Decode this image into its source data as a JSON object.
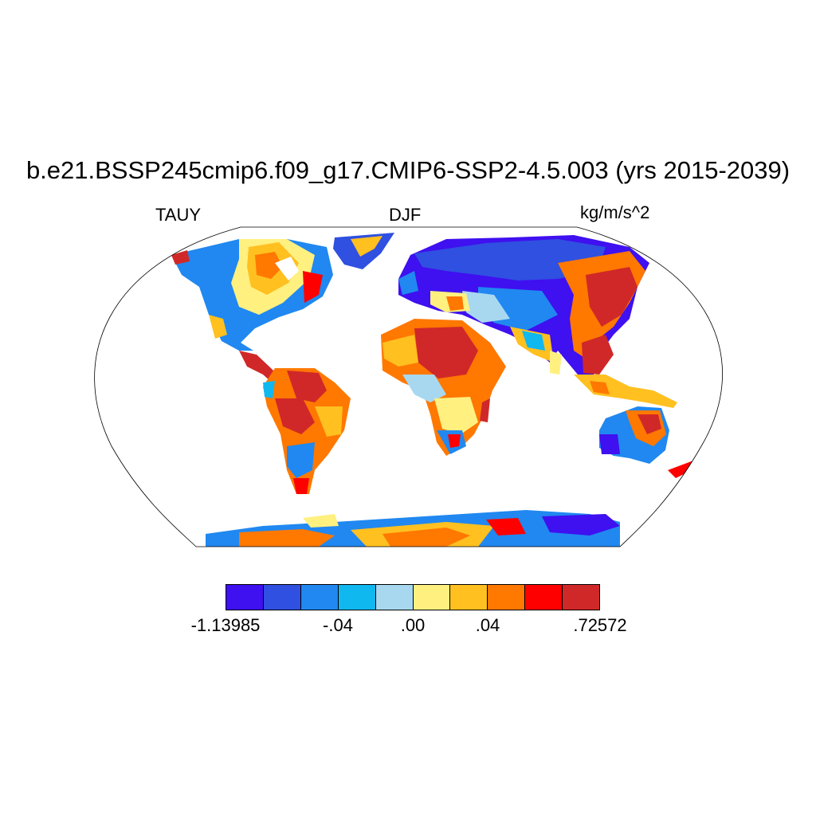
{
  "title": "b.e21.BSSP245cmip6.f09_g17.CMIP6-SSP2-4.5.003 (yrs 2015-2039)",
  "left_label": "TAUY",
  "center_label": "DJF",
  "right_label": "kg/m/s^2",
  "colorbar": {
    "colors": [
      "#3f10f0",
      "#2f50e0",
      "#2088f0",
      "#10b8f0",
      "#a8d8f0",
      "#fff080",
      "#ffc020",
      "#ff7800",
      "#ff0000",
      "#d02828"
    ],
    "tick_labels": [
      "-1.13985",
      "-.04",
      ".00",
      ".04",
      ".72572"
    ]
  },
  "map_legend_colors": {
    "land_outline": "#000000",
    "ocean": "#ffffff"
  }
}
